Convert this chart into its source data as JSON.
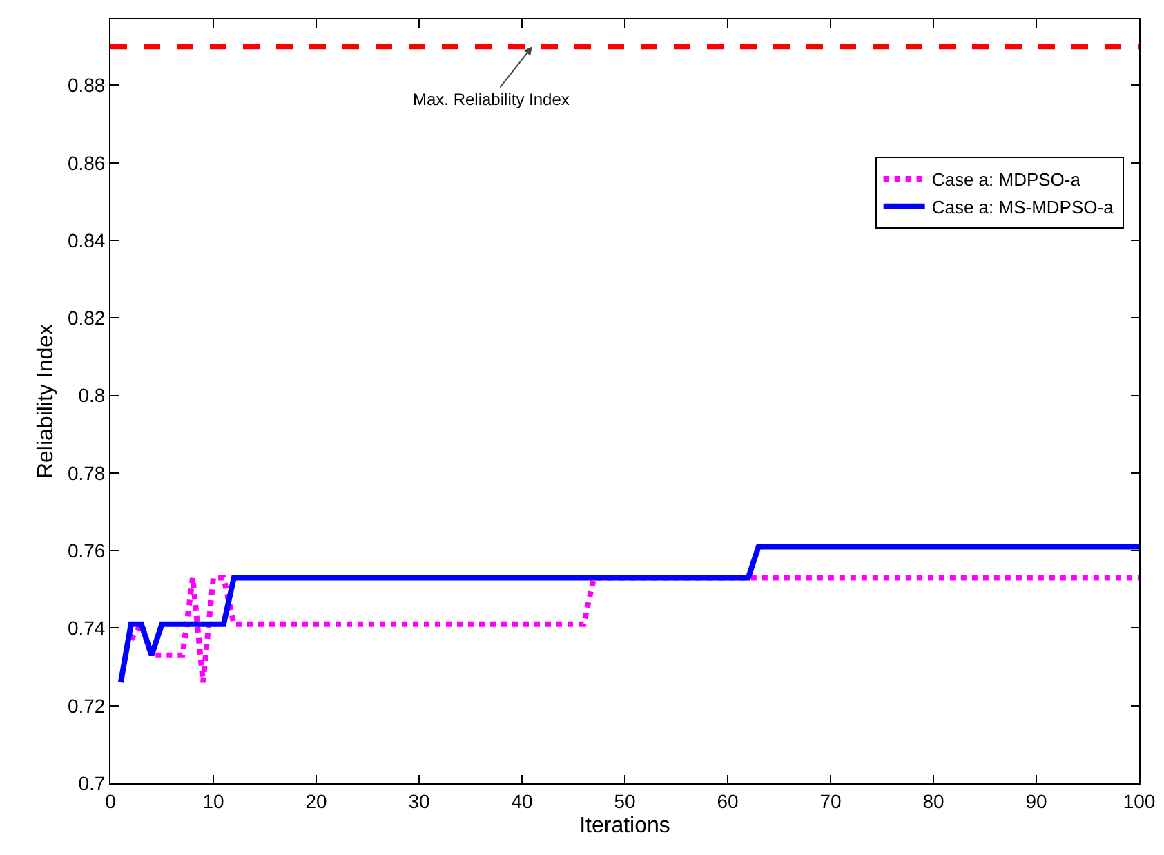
{
  "chart_data": {
    "type": "line",
    "xlabel": "Iterations",
    "ylabel": "Reliability Index",
    "xlim": [
      0,
      100
    ],
    "xticks": [
      0,
      10,
      20,
      30,
      40,
      50,
      60,
      70,
      80,
      90,
      100
    ],
    "ylim": [
      0.7,
      0.897
    ],
    "yticks": [
      {
        "value": 0.7,
        "label": "0.7"
      },
      0.72,
      0.74,
      0.76,
      0.78,
      {
        "value": 0.8,
        "label": "0.8"
      },
      0.82,
      0.84,
      0.86,
      0.88
    ],
    "series": [
      {
        "name": "Case a: MDPSO-a",
        "color": "#ff00ff",
        "line_style": "dotted",
        "x": [
          2,
          3,
          4,
          5,
          6,
          7,
          8,
          9,
          10,
          11,
          12,
          46,
          47,
          100
        ],
        "values": [
          0.737,
          0.741,
          0.733,
          0.733,
          0.733,
          0.733,
          0.753,
          0.726,
          0.753,
          0.753,
          0.741,
          0.741,
          0.753,
          0.753
        ]
      },
      {
        "name": "Case a: MS-MDPSO-a",
        "color": "#0000ff",
        "line_style": "solid",
        "x": [
          1,
          2,
          3,
          4,
          5,
          11,
          12,
          62,
          63,
          100
        ],
        "values": [
          0.726,
          0.741,
          0.741,
          0.733,
          0.741,
          0.741,
          0.753,
          0.753,
          0.761,
          0.761
        ]
      }
    ],
    "ref_lines": [
      {
        "axis": "y",
        "value": 0.89,
        "color": "#ff0000",
        "line_style": "dashed"
      }
    ],
    "annotations": [
      {
        "text": "Max. Reliability Index",
        "x": 41,
        "y": 0.89
      }
    ],
    "legend": "top right",
    "grid": false,
    "marker": "none"
  }
}
